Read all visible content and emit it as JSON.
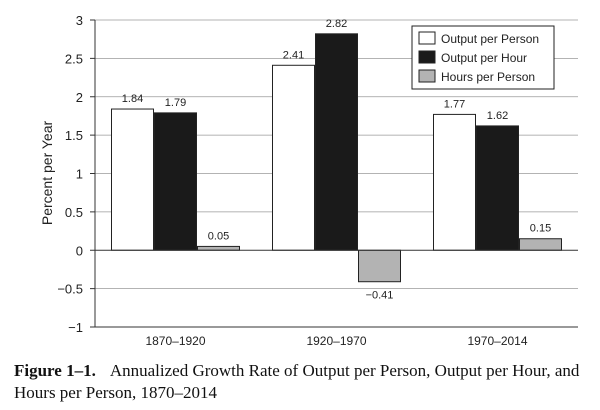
{
  "chart_data": {
    "type": "bar",
    "title": "",
    "xlabel": "",
    "ylabel": "Percent per Year",
    "ylim": [
      -1,
      3
    ],
    "yticks": [
      3,
      2.5,
      2,
      1.5,
      1,
      0.5,
      0,
      -0.5,
      -1
    ],
    "ytick_labels": [
      "3",
      "2.5",
      "2",
      "1.5",
      "1",
      "0.5",
      "0",
      "−0.5",
      "−1"
    ],
    "categories": [
      "1870–1920",
      "1920–1970",
      "1970–2014"
    ],
    "series": [
      {
        "name": "Output per Person",
        "color": "#ffffff",
        "values": [
          1.84,
          2.41,
          1.77
        ],
        "labels": [
          "1.84",
          "2.41",
          "1.77"
        ]
      },
      {
        "name": "Output per Hour",
        "color": "#1a1a1a",
        "values": [
          1.79,
          2.82,
          1.62
        ],
        "labels": [
          "1.79",
          "2.82",
          "1.62"
        ]
      },
      {
        "name": "Hours per Person",
        "color": "#b3b3b3",
        "values": [
          0.05,
          -0.41,
          0.15
        ],
        "labels": [
          "0.05",
          "−0.41",
          "0.15"
        ]
      }
    ],
    "grid": true,
    "legend_position": "top-right"
  },
  "caption": {
    "label": "Figure 1–1.",
    "text": "Annualized Growth Rate of Output per Person, Output per Hour, and Hours per Person, 1870–2014"
  }
}
